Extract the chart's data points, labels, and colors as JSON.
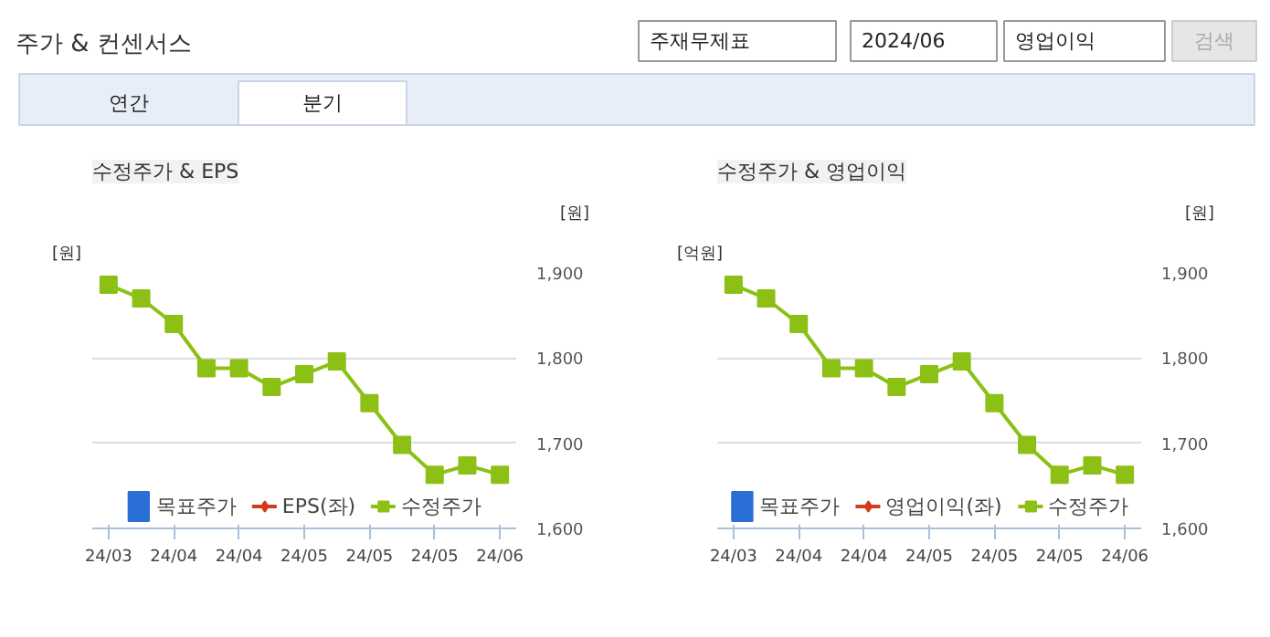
{
  "chart_data": [
    {
      "type": "other",
      "title": "주가 & 컨센서스",
      "annotations": [
        "주재무제표",
        "2024/06",
        "영업이익",
        "검색",
        "연간",
        "분기"
      ]
    },
    {
      "type": "line",
      "title": "수정주가 & EPS",
      "ylabel": "[원]",
      "y2label": "[원]",
      "categories": [
        "24/03",
        null,
        "24/04",
        null,
        "24/04",
        null,
        "24/05",
        null,
        "24/05",
        null,
        "24/05",
        null,
        "24/06"
      ],
      "series": [
        {
          "name": "목표주가",
          "type": "bar",
          "color": "#2a6fd6",
          "values": [
            null,
            null,
            null,
            null,
            null,
            null,
            null,
            null,
            null,
            null,
            null,
            null,
            null
          ]
        },
        {
          "name": "EPS(좌)",
          "type": "line",
          "marker": "diamond",
          "color": "#d23a1e",
          "values": [
            null,
            null,
            null,
            null,
            null,
            null,
            null,
            null,
            null,
            null,
            null,
            null,
            null
          ]
        },
        {
          "name": "수정주가",
          "type": "line",
          "axis": "y2",
          "marker": "square",
          "color": "#8cc014",
          "values": [
            1886,
            1870,
            1840,
            1788,
            1788,
            1766,
            1781,
            1796,
            1747,
            1698,
            1663,
            1674,
            1663
          ]
        }
      ],
      "y2lim": [
        1600,
        1900
      ],
      "y2ticks": [
        {
          "value": 1600,
          "label": "1,600"
        },
        {
          "value": 1700,
          "label": "1,700"
        },
        {
          "value": 1800,
          "label": "1,800"
        },
        {
          "value": 1900,
          "label": "1,900"
        }
      ],
      "grid": "y",
      "legend": "bottom"
    },
    {
      "type": "line",
      "title": "수정주가 & 영업이익",
      "ylabel": "[억원]",
      "y2label": "[원]",
      "categories": [
        "24/03",
        null,
        "24/04",
        null,
        "24/04",
        null,
        "24/05",
        null,
        "24/05",
        null,
        "24/05",
        null,
        "24/06"
      ],
      "series": [
        {
          "name": "목표주가",
          "type": "bar",
          "color": "#2a6fd6",
          "values": [
            null,
            null,
            null,
            null,
            null,
            null,
            null,
            null,
            null,
            null,
            null,
            null,
            null
          ]
        },
        {
          "name": "영업이익(좌)",
          "type": "line",
          "marker": "diamond",
          "color": "#d23a1e",
          "values": [
            null,
            null,
            null,
            null,
            null,
            null,
            null,
            null,
            null,
            null,
            null,
            null,
            null
          ]
        },
        {
          "name": "수정주가",
          "type": "line",
          "axis": "y2",
          "marker": "square",
          "color": "#8cc014",
          "values": [
            1886,
            1870,
            1840,
            1788,
            1788,
            1766,
            1781,
            1796,
            1747,
            1698,
            1663,
            1674,
            1663
          ]
        }
      ],
      "y2lim": [
        1600,
        1900
      ],
      "y2ticks": [
        {
          "value": 1600,
          "label": "1,600"
        },
        {
          "value": 1700,
          "label": "1,700"
        },
        {
          "value": 1800,
          "label": "1,800"
        },
        {
          "value": 1900,
          "label": "1,900"
        }
      ],
      "grid": "y",
      "legend": "bottom"
    }
  ]
}
